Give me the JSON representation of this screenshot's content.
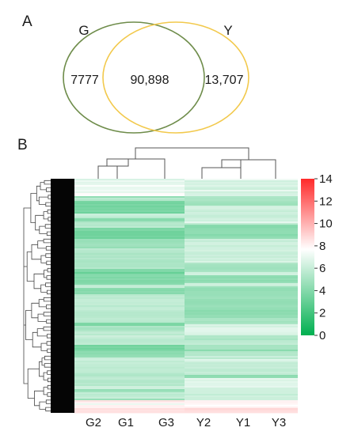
{
  "panel_a": {
    "label": "A",
    "sets": [
      {
        "name": "G",
        "color": "#6e8c4a"
      },
      {
        "name": "Y",
        "color": "#f2c94c"
      }
    ],
    "counts": {
      "g_only": "7777",
      "shared": "90,898",
      "y_only": "13,707"
    }
  },
  "panel_b": {
    "label": "B",
    "columns": [
      "G2",
      "G1",
      "G3",
      "Y2",
      "Y1",
      "Y3"
    ],
    "colorbar": {
      "ticks": [
        "14",
        "12",
        "10",
        "8",
        "6",
        "4",
        "2",
        "0"
      ],
      "range": [
        0,
        14
      ],
      "colors": {
        "low": "#00b050",
        "mid": "#ffffff",
        "high": "#ff2a2a"
      }
    }
  }
}
